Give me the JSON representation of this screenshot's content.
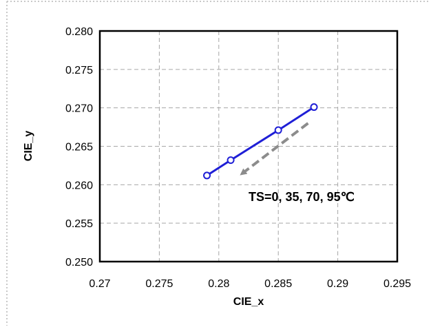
{
  "chart_data": {
    "type": "line",
    "title": "",
    "xlabel": "CIE_x",
    "ylabel": "CIE_y",
    "xlim": [
      0.27,
      0.295
    ],
    "ylim": [
      0.25,
      0.28
    ],
    "x_ticks": [
      "0.27",
      "0.275",
      "0.28",
      "0.285",
      "0.29",
      "0.295"
    ],
    "y_ticks": [
      "0.280",
      "0.275",
      "0.270",
      "0.265",
      "0.260",
      "0.255",
      "0.250"
    ],
    "grid": true,
    "series": [
      {
        "x": [
          0.279,
          0.281,
          0.285,
          0.288
        ],
        "y": [
          0.2612,
          0.2632,
          0.2671,
          0.2701
        ],
        "color": "#1f1fd6",
        "marker": "open-circle"
      }
    ],
    "annotation": {
      "text": "TS=0, 35, 70, 95℃",
      "arrow_from": [
        0.2875,
        0.268
      ],
      "arrow_to": [
        0.282,
        0.2615
      ],
      "arrow_color": "#8c8c8c"
    }
  },
  "colors": {
    "series": "#1f1fd6",
    "grid": "#a6a6a6",
    "arrow": "#8c8c8c",
    "border_dotted": "#c8c8c8"
  }
}
